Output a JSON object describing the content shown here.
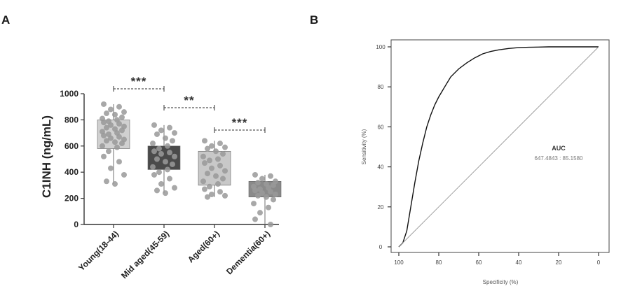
{
  "panels": {
    "a_letter": "A",
    "b_letter": "B"
  },
  "chart_data": [
    {
      "type": "box",
      "ylabel": "C1INH (ng/mL)",
      "ylim": [
        0,
        1000
      ],
      "yticks": [
        "0",
        "200",
        "400",
        "600",
        "800",
        "1000"
      ],
      "categories": [
        "Young(18-44)",
        "Mid aged(45-59)",
        "Aged(60+)",
        "Dementia(60+)"
      ],
      "box_colors": [
        "#d0d0d0",
        "#4a4a4a",
        "#c8c8c8",
        "#8a8a8a"
      ],
      "point_color": "#999999",
      "boxes": [
        {
          "q1": 580,
          "q3": 800,
          "min": 310,
          "max": 920
        },
        {
          "q1": 420,
          "q3": 600,
          "min": 240,
          "max": 760
        },
        {
          "q1": 300,
          "q3": 560,
          "min": 210,
          "max": 640
        },
        {
          "q1": 210,
          "q3": 330,
          "min": 0,
          "max": 380
        }
      ],
      "points": [
        [
          920,
          900,
          880,
          860,
          850,
          840,
          820,
          810,
          800,
          790,
          780,
          770,
          760,
          750,
          740,
          730,
          720,
          710,
          700,
          690,
          680,
          670,
          660,
          650,
          640,
          630,
          620,
          600,
          590,
          560,
          520,
          480,
          430,
          380,
          330,
          310
        ],
        [
          760,
          740,
          720,
          700,
          690,
          660,
          640,
          620,
          600,
          580,
          560,
          550,
          540,
          520,
          500,
          480,
          460,
          440,
          420,
          400,
          380,
          350,
          310,
          280,
          260,
          240
        ],
        [
          640,
          620,
          600,
          590,
          580,
          560,
          540,
          520,
          500,
          490,
          470,
          450,
          430,
          410,
          390,
          370,
          350,
          330,
          310,
          290,
          270,
          250,
          230,
          220,
          210
        ],
        [
          380,
          370,
          350,
          330,
          320,
          310,
          300,
          290,
          280,
          270,
          260,
          250,
          240,
          230,
          220,
          210,
          190,
          160,
          130,
          90,
          40,
          0
        ]
      ],
      "significance": [
        {
          "from": 0,
          "to": 1,
          "label": "***"
        },
        {
          "from": 1,
          "to": 2,
          "label": "**"
        },
        {
          "from": 2,
          "to": 3,
          "label": "***"
        }
      ]
    },
    {
      "type": "line",
      "xlabel": "Specificity (%)",
      "ylabel": "Sensitivity (%)",
      "xlim": [
        100,
        0
      ],
      "ylim": [
        0,
        100
      ],
      "xticks": [
        "100",
        "80",
        "60",
        "40",
        "20",
        "0"
      ],
      "yticks": [
        "0",
        "20",
        "40",
        "60",
        "80",
        "100"
      ],
      "series": [
        {
          "x": [
            100,
            98,
            96,
            94,
            92,
            90,
            88,
            86,
            84,
            82,
            80,
            77,
            74,
            70,
            66,
            62,
            58,
            54,
            50,
            45,
            40,
            35,
            30,
            25,
            20,
            15,
            10,
            5,
            0
          ],
          "y": [
            0,
            2,
            8,
            20,
            32,
            43,
            52,
            60,
            66,
            71,
            75,
            80,
            85,
            89,
            92,
            94.5,
            96.5,
            97.7,
            98.5,
            99.2,
            99.6,
            99.8,
            99.9,
            100,
            100,
            100,
            100,
            100,
            100
          ]
        },
        {
          "x": [
            100,
            0
          ],
          "y": [
            0,
            100
          ]
        }
      ],
      "annotation": {
        "title": "AUC",
        "value": "647.4843 : 85.1580"
      }
    }
  ]
}
